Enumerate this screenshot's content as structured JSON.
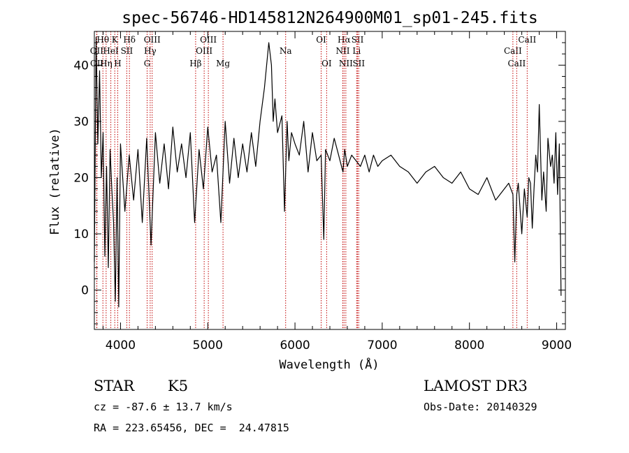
{
  "chart_data": {
    "type": "line",
    "title": "spec-56746-HD145812N264900M01_sp01-245.fits",
    "xlabel": "Wavelength (Å)",
    "ylabel": "Flux (relative)",
    "xlim": [
      3700,
      9100
    ],
    "ylim": [
      -7,
      46
    ],
    "xticks": [
      4000,
      5000,
      6000,
      7000,
      8000,
      9000
    ],
    "yticks": [
      0,
      10,
      20,
      30,
      40
    ],
    "grid": false,
    "series": [
      {
        "color": "#000000",
        "x": [
          3700,
          3720,
          3740,
          3760,
          3780,
          3800,
          3820,
          3840,
          3860,
          3880,
          3900,
          3920,
          3940,
          3960,
          3980,
          4000,
          4050,
          4100,
          4150,
          4200,
          4250,
          4300,
          4350,
          4400,
          4450,
          4500,
          4550,
          4600,
          4650,
          4700,
          4750,
          4800,
          4850,
          4900,
          4950,
          5000,
          5050,
          5100,
          5150,
          5200,
          5250,
          5300,
          5350,
          5400,
          5450,
          5500,
          5550,
          5600,
          5650,
          5700,
          5730,
          5750,
          5770,
          5800,
          5850,
          5880,
          5910,
          5930,
          5960,
          6000,
          6050,
          6100,
          6150,
          6200,
          6250,
          6300,
          6330,
          6350,
          6400,
          6450,
          6500,
          6550,
          6570,
          6600,
          6650,
          6700,
          6750,
          6800,
          6850,
          6900,
          6950,
          7000,
          7100,
          7200,
          7300,
          7400,
          7500,
          7600,
          7700,
          7800,
          7900,
          8000,
          8100,
          8200,
          8300,
          8400,
          8450,
          8498,
          8520,
          8542,
          8560,
          8600,
          8630,
          8662,
          8680,
          8700,
          8720,
          8740,
          8760,
          8780,
          8800,
          8830,
          8850,
          8880,
          8900,
          8930,
          8950,
          8970,
          8990,
          9010,
          9030,
          9050
        ],
        "y": [
          5,
          45,
          26,
          39,
          20,
          28,
          6,
          22,
          4,
          25,
          18,
          12,
          -2,
          20,
          -3,
          26,
          14,
          24,
          16,
          25,
          12,
          27,
          8,
          28,
          19,
          26,
          18,
          29,
          21,
          26,
          20,
          28,
          12,
          25,
          18,
          29,
          21,
          24,
          12,
          30,
          19,
          27,
          20,
          26,
          21,
          28,
          22,
          30,
          36,
          44,
          40,
          30,
          34,
          28,
          31,
          14,
          30,
          23,
          28,
          26,
          24,
          30,
          21,
          28,
          23,
          24,
          9,
          25,
          23,
          27,
          24,
          21,
          25,
          22,
          24,
          23,
          22,
          24,
          21,
          24,
          22,
          23,
          24,
          22,
          21,
          19,
          21,
          22,
          20,
          19,
          21,
          18,
          17,
          20,
          16,
          18,
          19,
          17,
          5,
          17,
          19,
          10,
          18,
          13,
          20,
          19,
          11,
          18,
          24,
          21,
          33,
          16,
          21,
          14,
          27,
          22,
          24,
          19,
          28,
          17,
          26,
          -1
        ]
      }
    ],
    "lines": [
      {
        "label": "Hθ",
        "x": 3798,
        "row": 1
      },
      {
        "label": "OII",
        "x": 3727,
        "row": 2
      },
      {
        "label": "OII",
        "x": 3729,
        "row": 3
      },
      {
        "label": "K",
        "x": 3934,
        "row": 1
      },
      {
        "label": "Hδ",
        "x": 4102,
        "row": 1
      },
      {
        "label": "HeI",
        "x": 3889,
        "row": 2
      },
      {
        "label": "Hη",
        "x": 3835,
        "row": 3
      },
      {
        "label": "SII",
        "x": 4072,
        "row": 2
      },
      {
        "label": "H",
        "x": 3968,
        "row": 3
      },
      {
        "label": "OIII",
        "x": 4363,
        "row": 1
      },
      {
        "label": "Hγ",
        "x": 4340,
        "row": 2
      },
      {
        "label": "G",
        "x": 4305,
        "row": 3
      },
      {
        "label": "OIII",
        "x": 5007,
        "row": 1
      },
      {
        "label": "OIII",
        "x": 4959,
        "row": 2
      },
      {
        "label": "Hβ",
        "x": 4861,
        "row": 3
      },
      {
        "label": "Mg",
        "x": 5175,
        "row": 3
      },
      {
        "label": "Na",
        "x": 5893,
        "row": 2
      },
      {
        "label": "OI",
        "x": 6300,
        "row": 1
      },
      {
        "label": "OI",
        "x": 6363,
        "row": 3
      },
      {
        "label": "Hα",
        "x": 6563,
        "row": 1
      },
      {
        "label": "SII",
        "x": 6717,
        "row": 1
      },
      {
        "label": "NII",
        "x": 6548,
        "row": 2
      },
      {
        "label": "Li",
        "x": 6707,
        "row": 2
      },
      {
        "label": "NII",
        "x": 6583,
        "row": 3
      },
      {
        "label": "SII",
        "x": 6731,
        "row": 3
      },
      {
        "label": "CaII",
        "x": 8662,
        "row": 1
      },
      {
        "label": "CaII",
        "x": 8498,
        "row": 2
      },
      {
        "label": "CaII",
        "x": 8542,
        "row": 3
      }
    ]
  },
  "info": {
    "object_type": "STAR",
    "subclass": "K5",
    "survey": "LAMOST DR3",
    "redshift": "cz = -87.6 ± 13.7 km/s",
    "obs_date": "Obs-Date: 20140329",
    "coords": "RA = 223.65456, DEC =  24.47815"
  }
}
